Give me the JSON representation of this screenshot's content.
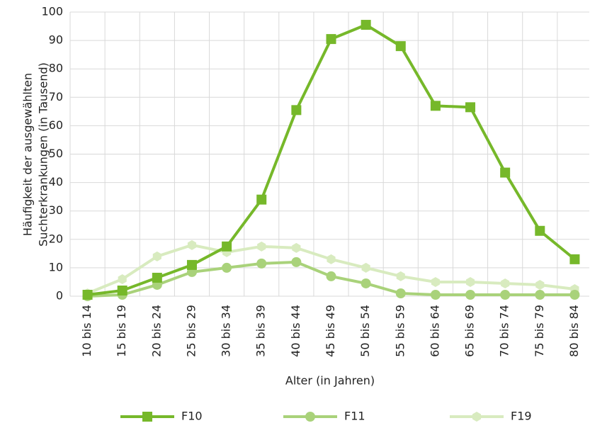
{
  "chart_data": {
    "type": "line",
    "ylabel": [
      "Häufigkeit der ausgewählten",
      "Suchterkrankungen (in Tausend)"
    ],
    "xlabel": "Alter (in Jahren)",
    "categories": [
      "10 bis 14",
      "15 bis 19",
      "20 bis 24",
      "25 bis 29",
      "30 bis 34",
      "35 bis 39",
      "40 bis 44",
      "45 bis 49",
      "50 bis 54",
      "55 bis 59",
      "60 bis 64",
      "65 bis 69",
      "70 bis 74",
      "75 bis 79",
      "80 bis 84"
    ],
    "series": [
      {
        "name": "F10",
        "color": "#76b82a",
        "marker": "square",
        "values": [
          0.5,
          2,
          6.5,
          11,
          17.5,
          34,
          65.5,
          90.5,
          95.5,
          88,
          67,
          66.5,
          43.5,
          23,
          13
        ]
      },
      {
        "name": "F11",
        "color": "#a9d27a",
        "marker": "circle",
        "values": [
          0,
          0.5,
          4,
          8.5,
          10,
          11.5,
          12,
          7,
          4.5,
          1,
          0.5,
          0.5,
          0.5,
          0.5,
          0.5
        ]
      },
      {
        "name": "F19",
        "color": "#d8ebbf",
        "marker": "hexagon",
        "values": [
          1,
          6,
          14,
          18,
          15.5,
          17.5,
          17,
          13,
          10,
          7,
          5,
          5,
          4.5,
          4,
          2.5
        ]
      }
    ],
    "ylim": [
      0,
      100
    ],
    "yticks": [
      0,
      10,
      20,
      30,
      40,
      50,
      60,
      70,
      80,
      90,
      100
    ],
    "grid": true,
    "legend": "bottom"
  }
}
